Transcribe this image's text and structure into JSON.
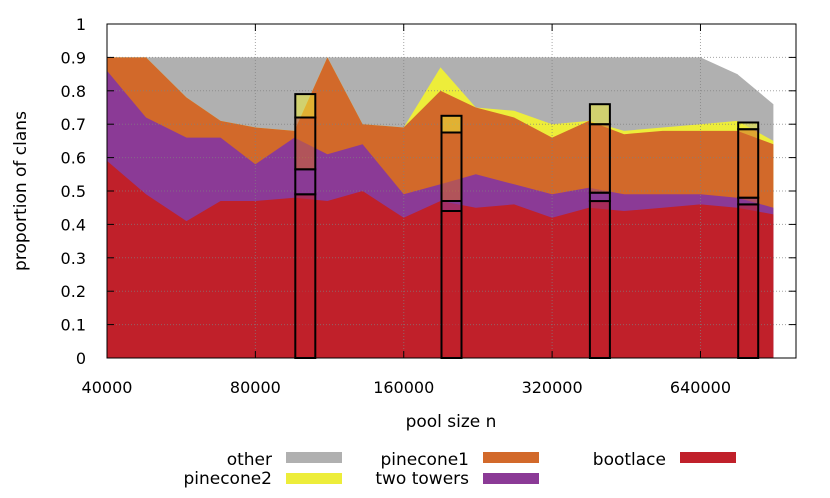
{
  "chart_data": {
    "type": "area",
    "title": "",
    "xlabel": "pool size n",
    "ylabel": "proportion of clans",
    "x_scale": "log2",
    "xlim": [
      40000,
      1000000
    ],
    "ylim": [
      0,
      1
    ],
    "x_ticks": [
      40000,
      80000,
      160000,
      320000,
      640000
    ],
    "x_tick_labels": [
      "40000",
      "80000",
      "160000",
      "320000",
      "640000"
    ],
    "y_ticks": [
      0,
      0.1,
      0.2,
      0.3,
      0.4,
      0.5,
      0.6,
      0.7,
      0.8,
      0.9,
      1
    ],
    "y_tick_labels": [
      "0",
      "0.1",
      "0.2",
      "0.3",
      "0.4",
      "0.5",
      "0.6",
      "0.7",
      "0.8",
      "0.9",
      "1"
    ],
    "grid": true,
    "stacking": "cumulative",
    "x": [
      40000,
      48000,
      58000,
      68000,
      80000,
      96000,
      112000,
      132000,
      160000,
      190000,
      224000,
      268000,
      320000,
      380000,
      448000,
      536000,
      640000,
      760000,
      900000
    ],
    "series": [
      {
        "name": "bootlace",
        "color": "#c0202a",
        "values": [
          0.59,
          0.49,
          0.41,
          0.47,
          0.47,
          0.48,
          0.47,
          0.5,
          0.42,
          0.47,
          0.45,
          0.46,
          0.42,
          0.45,
          0.44,
          0.45,
          0.46,
          0.45,
          0.43
        ]
      },
      {
        "name": "two towers",
        "color": "#8b3a96",
        "values": [
          0.86,
          0.72,
          0.66,
          0.66,
          0.58,
          0.66,
          0.61,
          0.64,
          0.49,
          0.52,
          0.55,
          0.52,
          0.49,
          0.51,
          0.49,
          0.49,
          0.49,
          0.48,
          0.45
        ]
      },
      {
        "name": "pinecone1",
        "color": "#d2692a",
        "values": [
          0.9,
          0.9,
          0.78,
          0.71,
          0.69,
          0.68,
          0.9,
          0.7,
          0.69,
          0.8,
          0.75,
          0.72,
          0.66,
          0.71,
          0.67,
          0.68,
          0.68,
          0.68,
          0.64
        ]
      },
      {
        "name": "pinecone2",
        "color": "#eded3a",
        "values": [
          0.9,
          0.9,
          0.78,
          0.71,
          0.69,
          0.68,
          0.9,
          0.7,
          0.69,
          0.87,
          0.75,
          0.74,
          0.7,
          0.71,
          0.68,
          0.69,
          0.7,
          0.71,
          0.65
        ]
      },
      {
        "name": "other",
        "color": "#b0b0b0",
        "values": [
          0.9,
          0.9,
          0.9,
          0.9,
          0.9,
          0.9,
          0.9,
          0.9,
          0.9,
          0.9,
          0.9,
          0.9,
          0.9,
          0.9,
          0.9,
          0.9,
          0.9,
          0.85,
          0.76
        ]
      }
    ],
    "bars": [
      {
        "x": 101000,
        "bootlace": 0.49,
        "two towers": 0.565,
        "pinecone1": 0.72,
        "pinecone2": 0.79
      },
      {
        "x": 200000,
        "bootlace": 0.44,
        "two towers": 0.47,
        "pinecone1": 0.675,
        "pinecone2": 0.725
      },
      {
        "x": 400000,
        "bootlace": 0.47,
        "two towers": 0.495,
        "pinecone1": 0.7,
        "pinecone2": 0.76
      },
      {
        "x": 800000,
        "bootlace": 0.46,
        "two towers": 0.48,
        "pinecone1": 0.685,
        "pinecone2": 0.705
      }
    ],
    "legend": {
      "placement": "bottom",
      "entries": [
        {
          "label": "other",
          "color": "#b0b0b0"
        },
        {
          "label": "pinecone2",
          "color": "#eded3a"
        },
        {
          "label": "pinecone1",
          "color": "#d2692a"
        },
        {
          "label": "two towers",
          "color": "#8b3a96"
        },
        {
          "label": "bootlace",
          "color": "#c0202a"
        }
      ]
    }
  }
}
